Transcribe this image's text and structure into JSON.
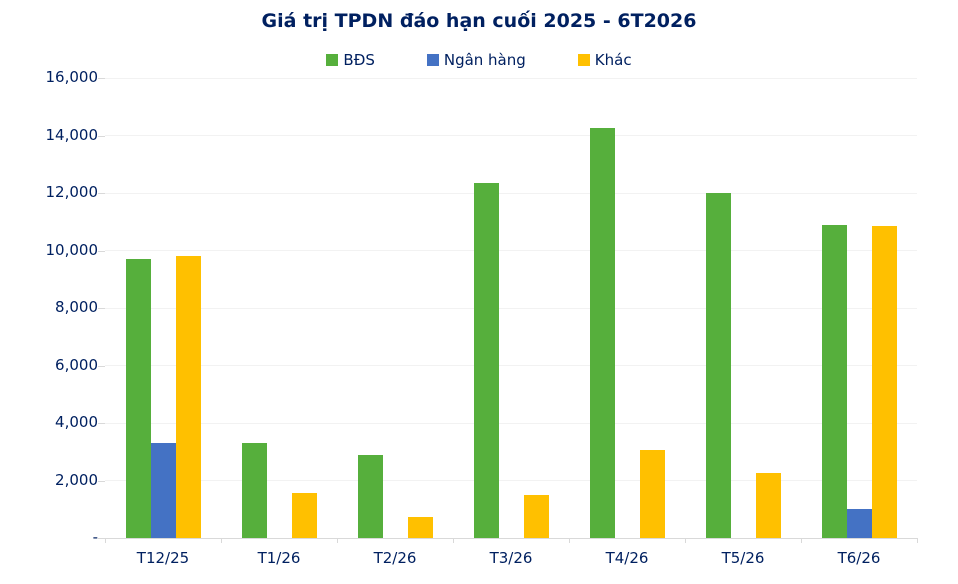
{
  "chart_data": {
    "type": "bar",
    "title": "Giá trị TPDN đáo hạn cuối 2025 - 6T2026",
    "categories": [
      "T12/25",
      "T1/26",
      "T2/26",
      "T3/26",
      "T4/26",
      "T5/26",
      "T6/26"
    ],
    "series": [
      {
        "name": "BĐS",
        "color": "#56AF3C",
        "values": [
          9700,
          3300,
          2900,
          12350,
          14250,
          12000,
          10900
        ]
      },
      {
        "name": "Ngân hàng",
        "color": "#4472C4",
        "values": [
          3300,
          0,
          0,
          0,
          0,
          0,
          1000
        ]
      },
      {
        "name": "Khác",
        "color": "#FFC000",
        "values": [
          9800,
          1550,
          730,
          1500,
          3060,
          2260,
          10850
        ]
      }
    ],
    "xlabel": "",
    "ylabel": "",
    "ylim": [
      0,
      16000
    ],
    "grid": "horizontal",
    "legend_position": "top-center",
    "yticks": [
      {
        "value": 16000,
        "label": "16,000"
      },
      {
        "value": 14000,
        "label": "14,000"
      },
      {
        "value": 12000,
        "label": "12,000"
      },
      {
        "value": 10000,
        "label": "10,000"
      },
      {
        "value": 8000,
        "label": "8,000"
      },
      {
        "value": 6000,
        "label": "6,000"
      },
      {
        "value": 4000,
        "label": "4,000"
      },
      {
        "value": 2000,
        "label": "2,000"
      },
      {
        "value": 0,
        "label": "-"
      }
    ],
    "colors": {
      "title_text": "#002060",
      "axis_text": "#002060",
      "gridline": "#f2f2f2",
      "axis_line": "#d9d9d9"
    }
  }
}
